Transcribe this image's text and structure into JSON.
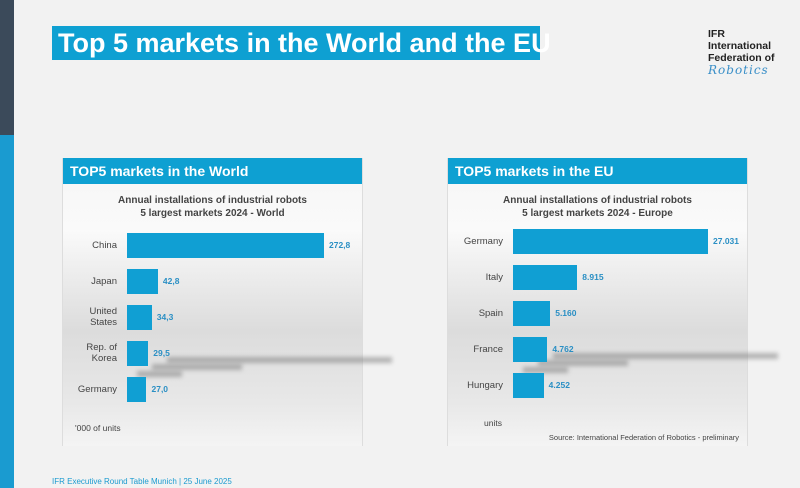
{
  "slide": {
    "title": "Top 5 markets in the World and the EU",
    "footer": "IFR Executive Round Table Munich | 25 June 2025"
  },
  "logo": {
    "line1": "IFR",
    "line2": "International",
    "line3": "Federation of",
    "line4": "Robotics"
  },
  "colors": {
    "accent": "#0ea0d2",
    "bar": "#109fd3",
    "value_text": "#2a8fc4",
    "strip_dark": "#3b4a5a"
  },
  "chart_data": [
    {
      "type": "bar",
      "orientation": "horizontal",
      "panel_title": "TOP5 markets in the World",
      "title": "Annual installations of industrial robots",
      "subtitle": "5 largest markets 2024 - World",
      "categories": [
        "China",
        "Japan",
        "United States",
        "Rep. of Korea",
        "Germany"
      ],
      "values": [
        272.8,
        42.8,
        34.3,
        29.5,
        27.0
      ],
      "labels": [
        "272,8",
        "42,8",
        "34,3",
        "29,5",
        "27,0"
      ],
      "units": "'000 of units"
    },
    {
      "type": "bar",
      "orientation": "horizontal",
      "panel_title": "TOP5 markets in the EU",
      "title": "Annual installations of industrial robots",
      "subtitle": "5 largest markets 2024 - Europe",
      "categories": [
        "Germany",
        "Italy",
        "Spain",
        "France",
        "Hungary"
      ],
      "values": [
        27031,
        8915,
        5160,
        4762,
        4252
      ],
      "labels": [
        "27.031",
        "8.915",
        "5.160",
        "4.762",
        "4.252"
      ],
      "units": "units",
      "source": "Source: International Federation of Robotics - preliminary"
    }
  ]
}
